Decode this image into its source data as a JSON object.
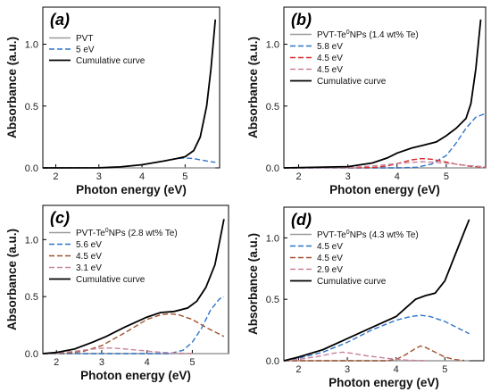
{
  "chart_data": [
    {
      "type": "line",
      "panel_label": "(a)",
      "xlabel": "Photon energy (eV)",
      "ylabel": "Absorbance (a.u.)",
      "xlim": [
        1.7,
        5.8
      ],
      "ylim": [
        0,
        1.3
      ],
      "xticks": [
        "2",
        "3",
        "4",
        "5"
      ],
      "yticks": [
        "0.0",
        "0.5",
        "1.0"
      ],
      "legend": {
        "placement": "top-left",
        "title": ""
      },
      "series": [
        {
          "name": "PVT",
          "color": "#9a9a9a",
          "dash": "solid",
          "x": [
            1.7,
            2.5,
            3.0,
            3.5,
            4.0,
            4.5,
            5.0,
            5.3,
            5.5,
            5.6,
            5.7
          ],
          "y": [
            0,
            0,
            0,
            0,
            0,
            0,
            0,
            0,
            0,
            0,
            0
          ]
        },
        {
          "name": "5 eV",
          "color": "#2e74c9",
          "dash": "dashed",
          "x": [
            1.7,
            3.0,
            3.5,
            4.0,
            4.5,
            4.8,
            5.0,
            5.2,
            5.4,
            5.6,
            5.7
          ],
          "y": [
            0,
            0.001,
            0.008,
            0.025,
            0.055,
            0.075,
            0.08,
            0.075,
            0.062,
            0.05,
            0.045
          ]
        },
        {
          "name": "Cumulative curve",
          "color": "#000000",
          "dash": "solid",
          "x": [
            1.7,
            3.0,
            3.5,
            4.0,
            4.5,
            4.8,
            5.0,
            5.2,
            5.35,
            5.5,
            5.6,
            5.7
          ],
          "y": [
            0,
            0.001,
            0.008,
            0.025,
            0.055,
            0.075,
            0.09,
            0.14,
            0.25,
            0.5,
            0.8,
            1.2
          ]
        }
      ]
    },
    {
      "type": "line",
      "panel_label": "(b)",
      "xlabel": "Photon energy (eV)",
      "ylabel": "Absorbance (a.u.)",
      "xlim": [
        1.7,
        5.8
      ],
      "ylim": [
        0,
        1.3
      ],
      "xticks": [
        "2",
        "3",
        "4",
        "5"
      ],
      "yticks": [
        "0.0",
        "0.5",
        "1.0"
      ],
      "legend": {
        "placement": "top-left",
        "title": "PVT-Te0NPs (1.4 wt% Te)"
      },
      "series": [
        {
          "name": "PVT-Te0NPs (1.4 wt% Te)",
          "color": "#9a9a9a",
          "dash": "solid",
          "x": [
            1.7,
            3.0,
            4.0,
            5.0,
            5.8
          ],
          "y": [
            0,
            0,
            0,
            0,
            0
          ]
        },
        {
          "name": "5.8 eV",
          "color": "#2e74c9",
          "dash": "dashed",
          "x": [
            1.7,
            4.0,
            4.4,
            4.7,
            5.0,
            5.2,
            5.4,
            5.6,
            5.8
          ],
          "y": [
            0,
            0,
            0.005,
            0.03,
            0.1,
            0.2,
            0.32,
            0.41,
            0.44
          ]
        },
        {
          "name": "4.5 eV",
          "color": "#d62a2a",
          "dash": "dashed",
          "x": [
            1.7,
            3.5,
            3.8,
            4.1,
            4.3,
            4.5,
            4.7,
            4.9,
            5.2,
            5.5,
            5.8
          ],
          "y": [
            0,
            0.003,
            0.015,
            0.045,
            0.065,
            0.075,
            0.07,
            0.055,
            0.03,
            0.012,
            0.004
          ]
        },
        {
          "name": "4.5 eV",
          "color": "#c8829a",
          "dash": "dashed",
          "x": [
            1.7,
            3.0,
            3.5,
            4.0,
            4.3,
            4.5,
            4.8,
            5.1,
            5.4,
            5.8
          ],
          "y": [
            0,
            0.003,
            0.015,
            0.035,
            0.045,
            0.05,
            0.045,
            0.035,
            0.02,
            0.008
          ]
        },
        {
          "name": "Cumulative curve",
          "color": "#000000",
          "dash": "solid",
          "x": [
            1.7,
            3.0,
            3.5,
            3.8,
            4.0,
            4.3,
            4.5,
            4.8,
            5.0,
            5.2,
            5.4,
            5.5,
            5.6,
            5.7
          ],
          "y": [
            0,
            0.01,
            0.04,
            0.08,
            0.12,
            0.16,
            0.18,
            0.21,
            0.26,
            0.32,
            0.4,
            0.52,
            0.8,
            1.2
          ]
        }
      ]
    },
    {
      "type": "line",
      "panel_label": "(c)",
      "xlabel": "Photon energy (eV)",
      "ylabel": "Absorbance (a.u.)",
      "xlim": [
        1.7,
        5.8
      ],
      "ylim": [
        0,
        1.3
      ],
      "xticks": [
        "2",
        "3",
        "4",
        "5"
      ],
      "yticks": [
        "0.0",
        "0.5",
        "1.0"
      ],
      "legend": {
        "placement": "top-left",
        "title": "PVT-Te0NPs (2.8 wt% Te)"
      },
      "series": [
        {
          "name": "PVT-Te0NPs (2.8 wt% Te)",
          "color": "#9a9a9a",
          "dash": "solid",
          "x": [
            1.7,
            3.0,
            4.0,
            5.0,
            5.8
          ],
          "y": [
            0,
            0,
            0,
            0,
            0
          ]
        },
        {
          "name": "5.6 eV",
          "color": "#2e74c9",
          "dash": "dashed",
          "x": [
            1.7,
            4.5,
            4.8,
            5.0,
            5.2,
            5.4,
            5.6,
            5.7
          ],
          "y": [
            0,
            0,
            0.03,
            0.1,
            0.22,
            0.38,
            0.48,
            0.5
          ]
        },
        {
          "name": "4.5 eV",
          "color": "#a0522d",
          "dash": "dashed",
          "x": [
            1.7,
            2.2,
            2.6,
            3.0,
            3.5,
            4.0,
            4.3,
            4.5,
            4.7,
            5.0,
            5.3,
            5.6,
            5.7
          ],
          "y": [
            0,
            0.005,
            0.02,
            0.07,
            0.18,
            0.3,
            0.34,
            0.35,
            0.34,
            0.3,
            0.23,
            0.17,
            0.15
          ]
        },
        {
          "name": "3.1 eV",
          "color": "#c8829a",
          "dash": "dashed",
          "x": [
            1.7,
            2.0,
            2.4,
            2.8,
            3.1,
            3.4,
            3.8,
            4.2,
            4.6,
            5.0
          ],
          "y": [
            0,
            0.005,
            0.02,
            0.04,
            0.05,
            0.045,
            0.03,
            0.015,
            0.005,
            0
          ]
        },
        {
          "name": "Cumulative curve",
          "color": "#000000",
          "dash": "solid",
          "x": [
            1.7,
            2.0,
            2.4,
            2.8,
            3.1,
            3.5,
            4.0,
            4.3,
            4.6,
            4.9,
            5.1,
            5.3,
            5.5,
            5.6,
            5.7
          ],
          "y": [
            0,
            0.01,
            0.04,
            0.1,
            0.15,
            0.23,
            0.32,
            0.36,
            0.37,
            0.4,
            0.46,
            0.58,
            0.78,
            0.98,
            1.18
          ]
        }
      ]
    },
    {
      "type": "line",
      "panel_label": "(d)",
      "xlabel": "Photon energy (eV)",
      "ylabel": "Absorbance (a.u.)",
      "xlim": [
        1.7,
        5.8
      ],
      "ylim": [
        0,
        1.25
      ],
      "xticks": [
        "2",
        "3",
        "4",
        "5"
      ],
      "yticks": [
        "0.0",
        "0.5",
        "1.0"
      ],
      "legend": {
        "placement": "top-left",
        "title": "PVT-Te0NPs (4.3 wt% Te)"
      },
      "series": [
        {
          "name": "PVT-Te0NPs (4.3 wt% Te)",
          "color": "#9a9a9a",
          "dash": "solid",
          "x": [
            1.7,
            3.0,
            4.0,
            5.0,
            5.5
          ],
          "y": [
            0,
            0,
            0,
            0,
            0
          ]
        },
        {
          "name": "4.5 eV",
          "color": "#2e74c9",
          "dash": "dashed",
          "x": [
            1.7,
            2.0,
            2.5,
            3.0,
            3.5,
            4.0,
            4.3,
            4.5,
            4.7,
            5.0,
            5.3,
            5.5
          ],
          "y": [
            0,
            0.02,
            0.07,
            0.15,
            0.25,
            0.33,
            0.36,
            0.37,
            0.36,
            0.32,
            0.26,
            0.22
          ]
        },
        {
          "name": "4.5 eV",
          "color": "#a0522d",
          "dash": "dashed",
          "x": [
            1.7,
            3.8,
            4.0,
            4.2,
            4.4,
            4.5,
            4.6,
            4.8,
            5.0,
            5.2,
            5.4
          ],
          "y": [
            0,
            0,
            0.01,
            0.05,
            0.1,
            0.12,
            0.11,
            0.07,
            0.03,
            0.01,
            0.002
          ]
        },
        {
          "name": "2.9 eV",
          "color": "#c8829a",
          "dash": "dashed",
          "x": [
            1.7,
            2.0,
            2.4,
            2.7,
            2.9,
            3.1,
            3.4,
            3.8,
            4.2,
            4.6
          ],
          "y": [
            0,
            0.01,
            0.035,
            0.06,
            0.07,
            0.06,
            0.04,
            0.02,
            0.006,
            0
          ]
        },
        {
          "name": "Cumulative curve",
          "color": "#000000",
          "dash": "solid",
          "x": [
            1.7,
            2.0,
            2.5,
            3.0,
            3.5,
            4.0,
            4.2,
            4.4,
            4.6,
            4.8,
            5.0,
            5.2,
            5.4,
            5.5
          ],
          "y": [
            0,
            0.03,
            0.09,
            0.18,
            0.27,
            0.36,
            0.43,
            0.5,
            0.53,
            0.55,
            0.65,
            0.85,
            1.05,
            1.15
          ]
        }
      ]
    }
  ]
}
